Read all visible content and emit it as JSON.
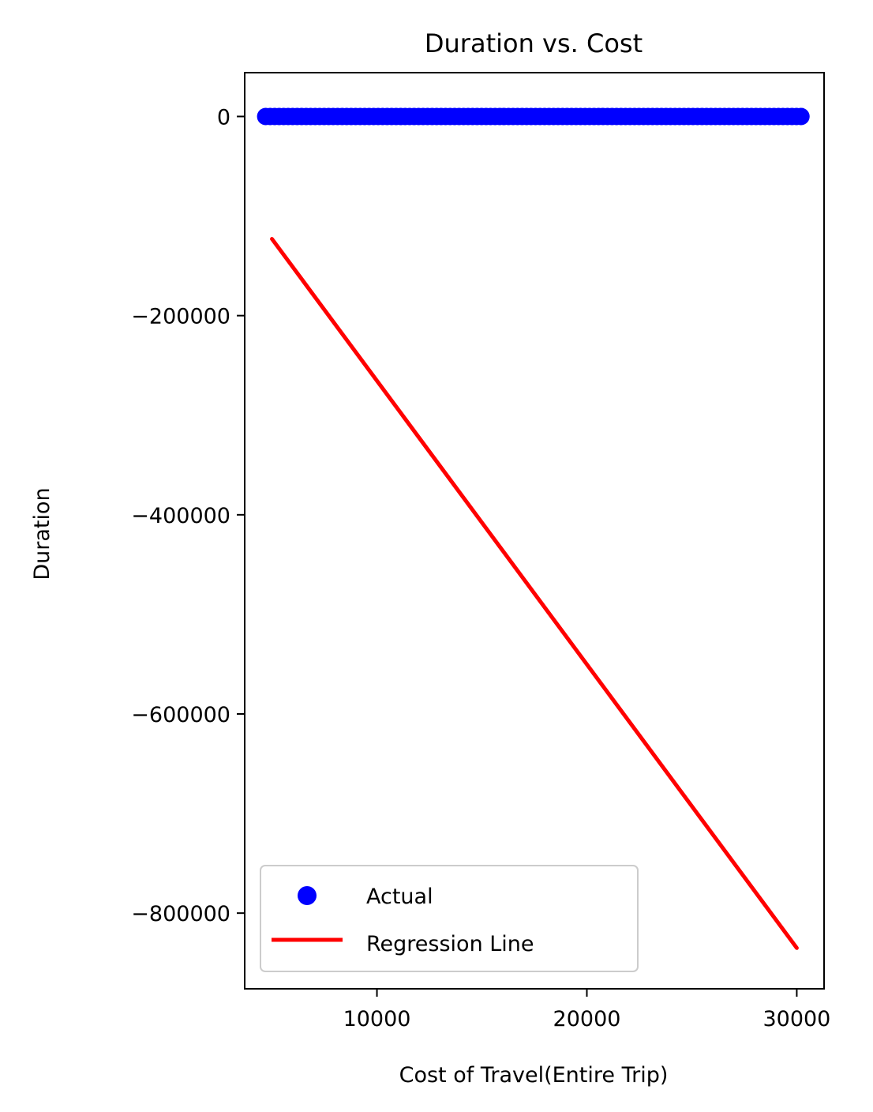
{
  "chart_data": {
    "type": "scatter",
    "title": "Duration vs. Cost",
    "xlabel": "Cost of Travel(Entire Trip)",
    "ylabel": "Duration",
    "xlim": [
      3700,
      31300
    ],
    "ylim": [
      -876000,
      44000
    ],
    "xticks": [
      10000,
      20000,
      30000
    ],
    "xtick_labels": [
      "10000",
      "20000",
      "30000"
    ],
    "yticks": [
      0,
      -200000,
      -400000,
      -600000,
      -800000
    ],
    "ytick_labels": [
      "0",
      "−200000",
      "−400000",
      "−600000",
      "−800000"
    ],
    "grid": false,
    "legend_position": "lower-left",
    "series": [
      {
        "name": "Actual",
        "kind": "scatter",
        "color": "#0000ff",
        "x_range": [
          4700,
          30200
        ],
        "y_value": 0,
        "point_count": 120
      },
      {
        "name": "Regression Line",
        "kind": "line",
        "color": "#ff0000",
        "x": [
          5000,
          30000
        ],
        "y": [
          -123000,
          -835000
        ]
      }
    ]
  }
}
